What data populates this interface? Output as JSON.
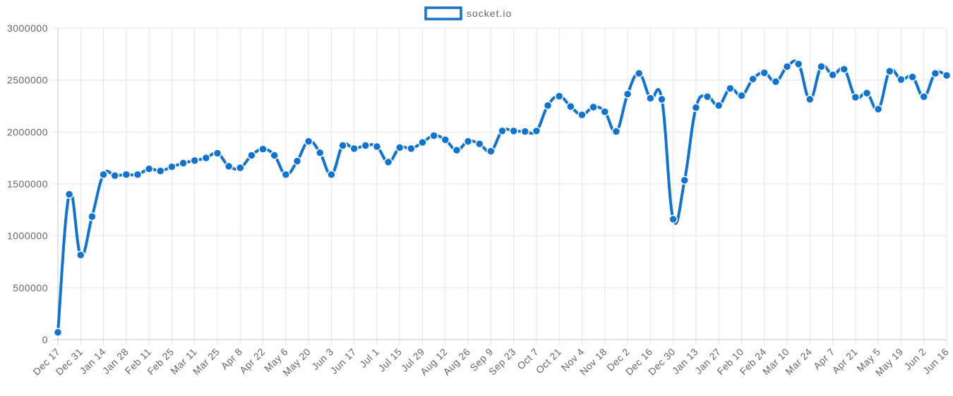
{
  "chart_data": {
    "type": "line",
    "title": "",
    "xlabel": "",
    "ylabel": "",
    "ylim": [
      0,
      3000000
    ],
    "yticks": [
      0,
      500000,
      1000000,
      1500000,
      2000000,
      2500000,
      3000000
    ],
    "grid": true,
    "legend_position": "top",
    "colors": {
      "line": "#0d74d6",
      "point_fill": "#0d74d6",
      "point_stroke": "#ffffff",
      "grid": "#e5e5e5",
      "axis": "#c8c8c8"
    },
    "x": [
      "Dec 17",
      "Dec 24",
      "Dec 31",
      "Jan 7",
      "Jan 14",
      "Jan 21",
      "Jan 28",
      "Feb 4",
      "Feb 11",
      "Feb 18",
      "Feb 25",
      "Mar 4",
      "Mar 11",
      "Mar 18",
      "Mar 25",
      "Apr 1",
      "Apr 8",
      "Apr 15",
      "Apr 22",
      "Apr 29",
      "May 6",
      "May 13",
      "May 20",
      "May 27",
      "Jun 3",
      "Jun 10",
      "Jun 17",
      "Jun 24",
      "Jul 1",
      "Jul 8",
      "Jul 15",
      "Jul 22",
      "Jul 29",
      "Aug 5",
      "Aug 12",
      "Aug 19",
      "Aug 26",
      "Sep 2",
      "Sep 9",
      "Sep 16",
      "Sep 23",
      "Sep 30",
      "Oct 7",
      "Oct 14",
      "Oct 21",
      "Oct 28",
      "Nov 4",
      "Nov 11",
      "Nov 18",
      "Nov 25",
      "Dec 2",
      "Dec 9",
      "Dec 16",
      "Dec 23",
      "Dec 30",
      "Jan 6",
      "Jan 13",
      "Jan 20",
      "Jan 27",
      "Feb 3",
      "Feb 10",
      "Feb 17",
      "Feb 24",
      "Mar 3",
      "Mar 10",
      "Mar 17",
      "Mar 24",
      "Mar 31",
      "Apr 7",
      "Apr 14",
      "Apr 21",
      "Apr 28",
      "May 5",
      "May 12",
      "May 19",
      "May 26",
      "Jun 2",
      "Jun 9",
      "Jun 16"
    ],
    "x_tick_labels": [
      "Dec 17",
      "Dec 31",
      "Jan 14",
      "Jan 28",
      "Feb 11",
      "Feb 25",
      "Mar 11",
      "Mar 25",
      "Apr 8",
      "Apr 22",
      "May 6",
      "May 20",
      "Jun 3",
      "Jun 17",
      "Jul 1",
      "Jul 15",
      "Jul 29",
      "Aug 12",
      "Aug 26",
      "Sep 9",
      "Sep 23",
      "Oct 7",
      "Oct 21",
      "Nov 4",
      "Nov 18",
      "Dec 2",
      "Dec 16",
      "Dec 30",
      "Jan 13",
      "Jan 27",
      "Feb 10",
      "Feb 24",
      "Mar 10",
      "Mar 24",
      "Apr 7",
      "Apr 21",
      "May 5",
      "May 19",
      "Jun 2",
      "Jun 16"
    ],
    "series": [
      {
        "name": "socket.io",
        "values": [
          70000,
          1400000,
          815000,
          1185000,
          1590000,
          1580000,
          1590000,
          1590000,
          1645000,
          1625000,
          1665000,
          1700000,
          1725000,
          1750000,
          1795000,
          1670000,
          1655000,
          1775000,
          1835000,
          1775000,
          1590000,
          1720000,
          1910000,
          1800000,
          1590000,
          1870000,
          1840000,
          1870000,
          1860000,
          1710000,
          1850000,
          1840000,
          1900000,
          1965000,
          1925000,
          1825000,
          1910000,
          1885000,
          1815000,
          2010000,
          2010000,
          2005000,
          2010000,
          2255000,
          2345000,
          2245000,
          2165000,
          2240000,
          2195000,
          2005000,
          2365000,
          2565000,
          2325000,
          2315000,
          1160000,
          1535000,
          2235000,
          2340000,
          2255000,
          2420000,
          2350000,
          2510000,
          2570000,
          2485000,
          2630000,
          2655000,
          2315000,
          2630000,
          2550000,
          2605000,
          2335000,
          2375000,
          2220000,
          2585000,
          2505000,
          2530000,
          2340000,
          2565000,
          2545000
        ]
      }
    ]
  }
}
